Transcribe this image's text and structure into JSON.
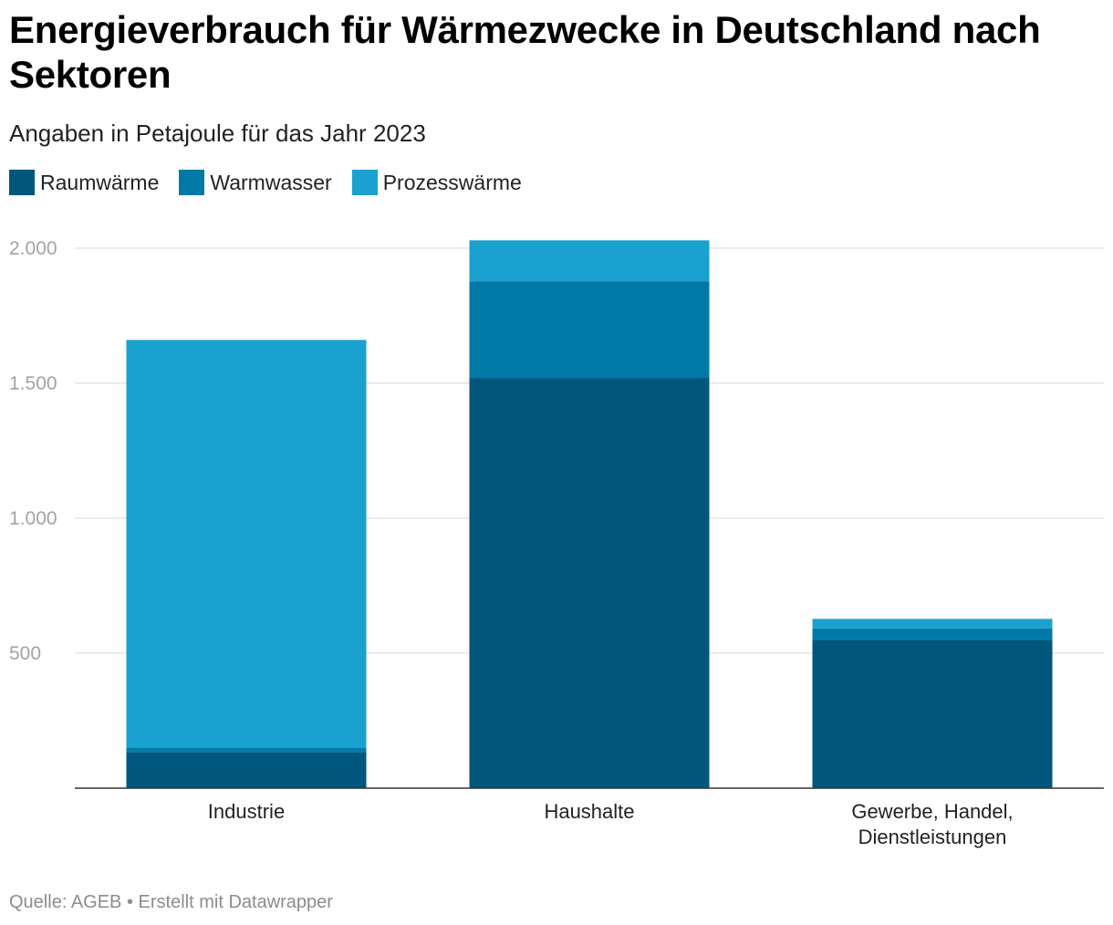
{
  "header": {
    "title": "Energieverbrauch für Wärmezwecke in Deutschland nach Sektoren",
    "subtitle": "Angaben in Petajoule für das Jahr 2023"
  },
  "footer": {
    "source_label": "Quelle: AGEB",
    "separator": "•",
    "credit": "Erstellt mit Datawrapper"
  },
  "chart_data": {
    "type": "bar",
    "stacked": true,
    "title": "Energieverbrauch für Wärmezwecke in Deutschland nach Sektoren",
    "subtitle": "Angaben in Petajoule für das Jahr 2023",
    "categories": [
      [
        "Industrie"
      ],
      [
        "Haushalte"
      ],
      [
        "Gewerbe, Handel,",
        "Dienstleistungen"
      ]
    ],
    "series": [
      {
        "name": "Raumwärme",
        "color": "#00567c",
        "values": [
          133,
          1520,
          550
        ]
      },
      {
        "name": "Warmwasser",
        "color": "#0079a7",
        "values": [
          17,
          357,
          42
        ]
      },
      {
        "name": "Prozesswärme",
        "color": "#1aa1cf",
        "values": [
          1510,
          152,
          35
        ]
      }
    ],
    "ylim": [
      0,
      2000
    ],
    "yticks": [
      {
        "value": 500,
        "label": "500"
      },
      {
        "value": 1000,
        "label": "1.000"
      },
      {
        "value": 1500,
        "label": "1.500"
      },
      {
        "value": 2000,
        "label": "2.000"
      }
    ],
    "xlabel": "",
    "ylabel": "",
    "grid": true,
    "legend_position": "top-left"
  }
}
